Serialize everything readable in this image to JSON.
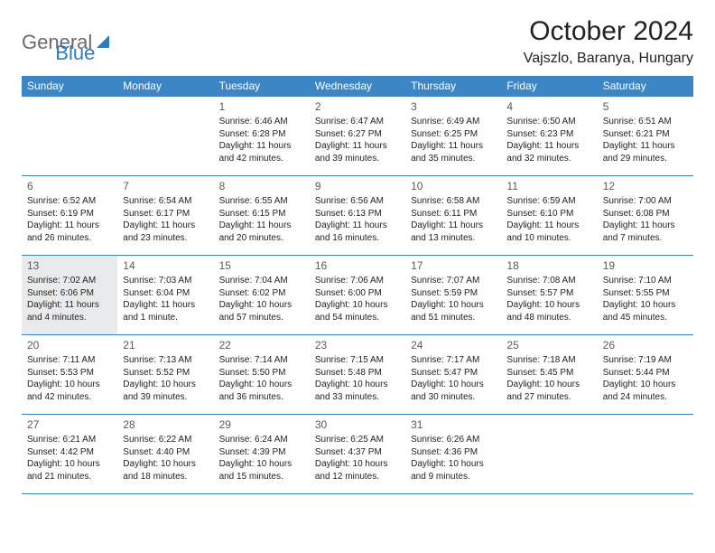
{
  "logo": {
    "text1": "General",
    "text2": "Blue"
  },
  "title": {
    "month": "October 2024",
    "location": "Vajszlo, Baranya, Hungary"
  },
  "colors": {
    "header_bg": "#3d86c6",
    "header_fg": "#ffffff",
    "rule": "#3d86c6",
    "today_bg": "#e9eaeb",
    "logo_gray": "#6a6a6a",
    "logo_blue": "#2f7bbf"
  },
  "columns": [
    "Sunday",
    "Monday",
    "Tuesday",
    "Wednesday",
    "Thursday",
    "Friday",
    "Saturday"
  ],
  "layout": {
    "first_weekday_index": 2,
    "days_in_month": 31,
    "today": 13
  },
  "days": {
    "1": {
      "sunrise": "6:46 AM",
      "sunset": "6:28 PM",
      "daylight": "11 hours and 42 minutes."
    },
    "2": {
      "sunrise": "6:47 AM",
      "sunset": "6:27 PM",
      "daylight": "11 hours and 39 minutes."
    },
    "3": {
      "sunrise": "6:49 AM",
      "sunset": "6:25 PM",
      "daylight": "11 hours and 35 minutes."
    },
    "4": {
      "sunrise": "6:50 AM",
      "sunset": "6:23 PM",
      "daylight": "11 hours and 32 minutes."
    },
    "5": {
      "sunrise": "6:51 AM",
      "sunset": "6:21 PM",
      "daylight": "11 hours and 29 minutes."
    },
    "6": {
      "sunrise": "6:52 AM",
      "sunset": "6:19 PM",
      "daylight": "11 hours and 26 minutes."
    },
    "7": {
      "sunrise": "6:54 AM",
      "sunset": "6:17 PM",
      "daylight": "11 hours and 23 minutes."
    },
    "8": {
      "sunrise": "6:55 AM",
      "sunset": "6:15 PM",
      "daylight": "11 hours and 20 minutes."
    },
    "9": {
      "sunrise": "6:56 AM",
      "sunset": "6:13 PM",
      "daylight": "11 hours and 16 minutes."
    },
    "10": {
      "sunrise": "6:58 AM",
      "sunset": "6:11 PM",
      "daylight": "11 hours and 13 minutes."
    },
    "11": {
      "sunrise": "6:59 AM",
      "sunset": "6:10 PM",
      "daylight": "11 hours and 10 minutes."
    },
    "12": {
      "sunrise": "7:00 AM",
      "sunset": "6:08 PM",
      "daylight": "11 hours and 7 minutes."
    },
    "13": {
      "sunrise": "7:02 AM",
      "sunset": "6:06 PM",
      "daylight": "11 hours and 4 minutes."
    },
    "14": {
      "sunrise": "7:03 AM",
      "sunset": "6:04 PM",
      "daylight": "11 hours and 1 minute."
    },
    "15": {
      "sunrise": "7:04 AM",
      "sunset": "6:02 PM",
      "daylight": "10 hours and 57 minutes."
    },
    "16": {
      "sunrise": "7:06 AM",
      "sunset": "6:00 PM",
      "daylight": "10 hours and 54 minutes."
    },
    "17": {
      "sunrise": "7:07 AM",
      "sunset": "5:59 PM",
      "daylight": "10 hours and 51 minutes."
    },
    "18": {
      "sunrise": "7:08 AM",
      "sunset": "5:57 PM",
      "daylight": "10 hours and 48 minutes."
    },
    "19": {
      "sunrise": "7:10 AM",
      "sunset": "5:55 PM",
      "daylight": "10 hours and 45 minutes."
    },
    "20": {
      "sunrise": "7:11 AM",
      "sunset": "5:53 PM",
      "daylight": "10 hours and 42 minutes."
    },
    "21": {
      "sunrise": "7:13 AM",
      "sunset": "5:52 PM",
      "daylight": "10 hours and 39 minutes."
    },
    "22": {
      "sunrise": "7:14 AM",
      "sunset": "5:50 PM",
      "daylight": "10 hours and 36 minutes."
    },
    "23": {
      "sunrise": "7:15 AM",
      "sunset": "5:48 PM",
      "daylight": "10 hours and 33 minutes."
    },
    "24": {
      "sunrise": "7:17 AM",
      "sunset": "5:47 PM",
      "daylight": "10 hours and 30 minutes."
    },
    "25": {
      "sunrise": "7:18 AM",
      "sunset": "5:45 PM",
      "daylight": "10 hours and 27 minutes."
    },
    "26": {
      "sunrise": "7:19 AM",
      "sunset": "5:44 PM",
      "daylight": "10 hours and 24 minutes."
    },
    "27": {
      "sunrise": "6:21 AM",
      "sunset": "4:42 PM",
      "daylight": "10 hours and 21 minutes."
    },
    "28": {
      "sunrise": "6:22 AM",
      "sunset": "4:40 PM",
      "daylight": "10 hours and 18 minutes."
    },
    "29": {
      "sunrise": "6:24 AM",
      "sunset": "4:39 PM",
      "daylight": "10 hours and 15 minutes."
    },
    "30": {
      "sunrise": "6:25 AM",
      "sunset": "4:37 PM",
      "daylight": "10 hours and 12 minutes."
    },
    "31": {
      "sunrise": "6:26 AM",
      "sunset": "4:36 PM",
      "daylight": "10 hours and 9 minutes."
    }
  },
  "labels": {
    "sunrise": "Sunrise:",
    "sunset": "Sunset:",
    "daylight": "Daylight:"
  }
}
